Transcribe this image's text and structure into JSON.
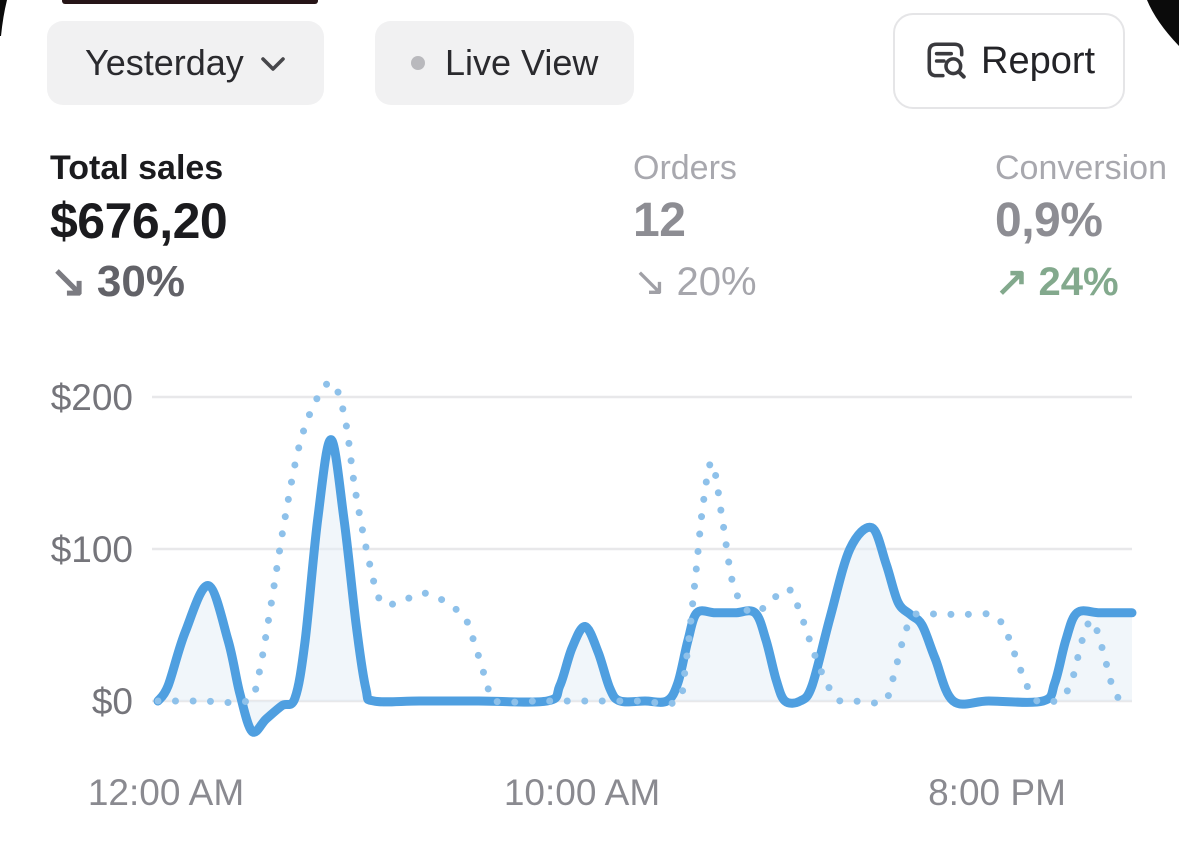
{
  "toolbar": {
    "date_range": {
      "label": "Yesterday"
    },
    "live_view": {
      "label": "Live View"
    },
    "report": {
      "label": "Report"
    }
  },
  "metrics": [
    {
      "id": "total-sales",
      "label": "Total sales",
      "value": "$676,20",
      "delta_arrow": "↘",
      "delta": "30%",
      "delta_direction": "down"
    },
    {
      "id": "orders",
      "label": "Orders",
      "value": "12",
      "delta_arrow": "↘",
      "delta": "20%",
      "delta_direction": "down"
    },
    {
      "id": "conversion",
      "label": "Conversion",
      "value": "0,9%",
      "delta_arrow": "↗",
      "delta": "24%",
      "delta_direction": "up"
    }
  ],
  "colors": {
    "accent_blue_solid": "#4f9fe0",
    "accent_blue_dotted": "#8ec1ea",
    "positive_green": "#83a98d",
    "gridline": "#e8e8ea",
    "area_fill": "rgba(227,237,246,0.5)"
  },
  "chart_data": {
    "type": "line",
    "title": "",
    "xlabel": "",
    "ylabel": "",
    "x_tick_labels": [
      "12:00 AM",
      "10:00 AM",
      "8:00 PM"
    ],
    "x_tick_hours": [
      0,
      10,
      20
    ],
    "y_tick_labels": [
      "$0",
      "$100",
      "$200"
    ],
    "y_tick_values": [
      0,
      100,
      200
    ],
    "ylim": [
      0,
      200
    ],
    "x_range_hours": [
      0,
      23.1
    ],
    "grid": true,
    "legend": "none",
    "series": [
      {
        "name": "current-period",
        "style": "solid",
        "color": "#4f9fe0",
        "points": [
          [
            0,
            0
          ],
          [
            0.24,
            10
          ],
          [
            0.64,
            45
          ],
          [
            1.19,
            76
          ],
          [
            1.66,
            40
          ],
          [
            1.94,
            5
          ],
          [
            2.23,
            -20
          ],
          [
            2.56,
            -12
          ],
          [
            2.94,
            -3
          ],
          [
            3.25,
            2
          ],
          [
            3.49,
            40
          ],
          [
            3.79,
            120
          ],
          [
            4.1,
            172
          ],
          [
            4.41,
            120
          ],
          [
            4.7,
            50
          ],
          [
            4.93,
            8
          ],
          [
            5.12,
            0
          ],
          [
            6.2,
            0
          ],
          [
            7.6,
            0
          ],
          [
            9.23,
            0
          ],
          [
            9.53,
            10
          ],
          [
            9.82,
            35
          ],
          [
            10.13,
            49
          ],
          [
            10.44,
            32
          ],
          [
            10.72,
            8
          ],
          [
            10.96,
            0
          ],
          [
            11.55,
            0
          ],
          [
            12.07,
            0
          ],
          [
            12.33,
            12
          ],
          [
            12.57,
            40
          ],
          [
            12.78,
            58
          ],
          [
            13.21,
            58
          ],
          [
            13.69,
            58
          ],
          [
            14.16,
            58
          ],
          [
            14.42,
            40
          ],
          [
            14.66,
            14
          ],
          [
            14.87,
            0
          ],
          [
            15.23,
            0
          ],
          [
            15.51,
            10
          ],
          [
            15.94,
            55
          ],
          [
            16.41,
            100
          ],
          [
            16.93,
            114
          ],
          [
            17.27,
            90
          ],
          [
            17.55,
            65
          ],
          [
            17.84,
            57
          ],
          [
            18.12,
            50
          ],
          [
            18.43,
            28
          ],
          [
            18.86,
            0
          ],
          [
            19.7,
            0
          ],
          [
            20.99,
            0
          ],
          [
            21.27,
            12
          ],
          [
            21.53,
            40
          ],
          [
            21.8,
            58
          ],
          [
            22.34,
            58
          ],
          [
            23.1,
            58
          ]
        ]
      },
      {
        "name": "comparison-period",
        "style": "dotted",
        "color": "#8ec1ea",
        "points": [
          [
            0,
            0
          ],
          [
            1.0,
            0
          ],
          [
            2.11,
            0
          ],
          [
            2.37,
            15
          ],
          [
            2.66,
            60
          ],
          [
            3.01,
            120
          ],
          [
            3.37,
            170
          ],
          [
            3.79,
            200
          ],
          [
            4.15,
            209
          ],
          [
            4.44,
            185
          ],
          [
            4.67,
            140
          ],
          [
            4.98,
            95
          ],
          [
            5.27,
            66
          ],
          [
            5.62,
            64
          ],
          [
            5.98,
            68
          ],
          [
            6.29,
            71
          ],
          [
            6.64,
            68
          ],
          [
            6.97,
            62
          ],
          [
            7.28,
            55
          ],
          [
            7.54,
            35
          ],
          [
            7.8,
            12
          ],
          [
            7.99,
            0
          ],
          [
            9.06,
            0
          ],
          [
            10.25,
            0
          ],
          [
            11.43,
            0
          ],
          [
            12.31,
            0
          ],
          [
            12.52,
            25
          ],
          [
            12.74,
            80
          ],
          [
            12.93,
            130
          ],
          [
            13.14,
            157
          ],
          [
            13.38,
            120
          ],
          [
            13.61,
            80
          ],
          [
            13.85,
            64
          ],
          [
            14.09,
            58
          ],
          [
            14.4,
            62
          ],
          [
            14.71,
            70
          ],
          [
            14.99,
            73
          ],
          [
            15.27,
            55
          ],
          [
            15.58,
            30
          ],
          [
            15.89,
            10
          ],
          [
            16.18,
            0
          ],
          [
            16.7,
            0
          ],
          [
            17.24,
            0
          ],
          [
            17.48,
            20
          ],
          [
            17.72,
            45
          ],
          [
            17.96,
            57
          ],
          [
            18.55,
            57
          ],
          [
            19.14,
            57
          ],
          [
            19.73,
            57
          ],
          [
            20.04,
            50
          ],
          [
            20.33,
            30
          ],
          [
            20.61,
            10
          ],
          [
            20.85,
            0
          ],
          [
            21.27,
            0
          ],
          [
            21.63,
            10
          ],
          [
            21.92,
            40
          ],
          [
            22.15,
            53
          ],
          [
            22.39,
            35
          ],
          [
            22.63,
            10
          ],
          [
            22.82,
            0
          ]
        ]
      }
    ]
  }
}
